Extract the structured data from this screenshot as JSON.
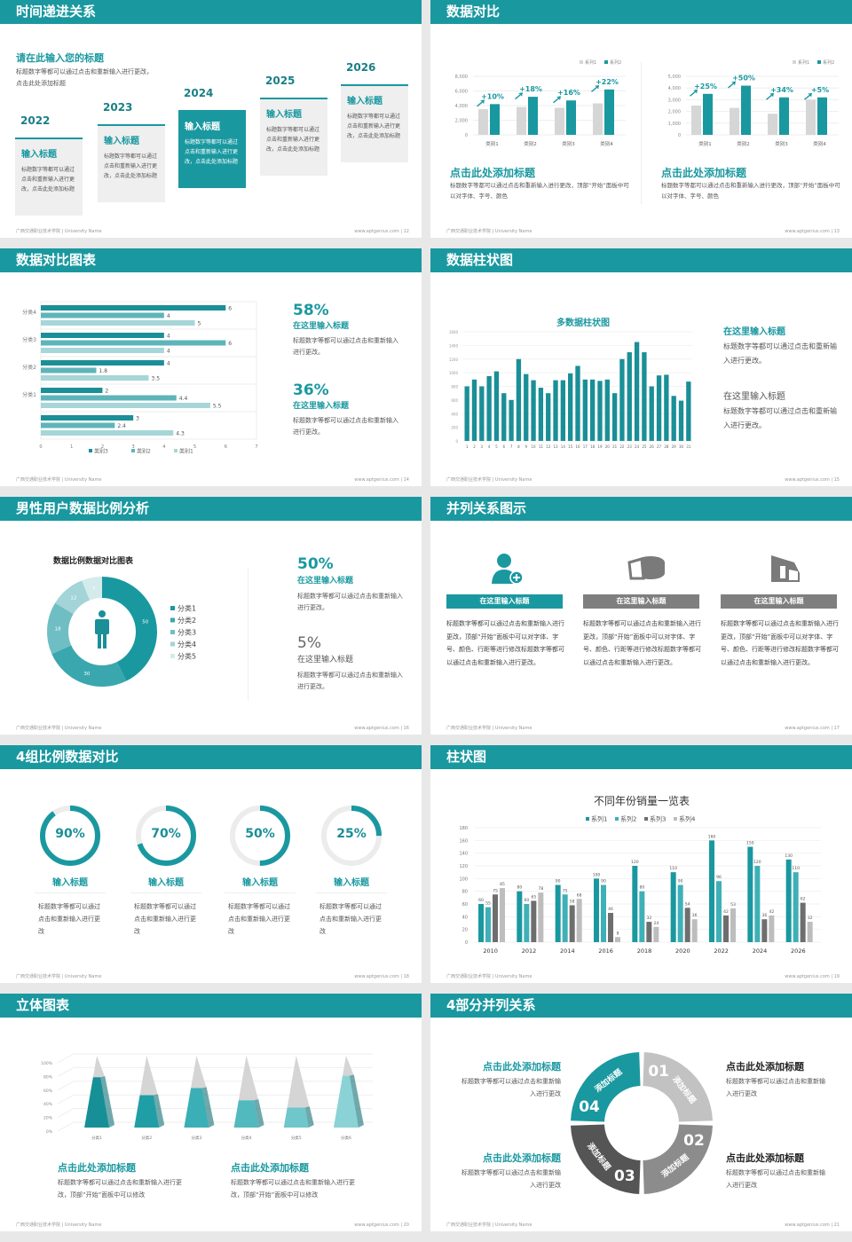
{
  "footer": {
    "left": "广西交通职业技术学院 | University Name",
    "url": "www.aptgenius.com"
  },
  "colors": {
    "accent": "#1a98a0",
    "gray": "#d3d3d3"
  },
  "s1": {
    "title": "时间递进关系",
    "page": "12",
    "subtitle": "请在此输入您的标题",
    "desc": "标题数字等都可以通过点击和重新输入进行更改，点击此处添加标题",
    "items": [
      {
        "year": "2022",
        "title": "输入标题",
        "text": "标题数字等都可以通过点击和重新输入进行更改，点击此处添加标题"
      },
      {
        "year": "2023",
        "title": "输入标题",
        "text": "标题数字等都可以通过点击和重新输入进行更改，点击此处添加标题"
      },
      {
        "year": "2024",
        "title": "输入标题",
        "text": "标题数字等都可以通过点击和重新输入进行更改，点击此处添加标题"
      },
      {
        "year": "2025",
        "title": "输入标题",
        "text": "标题数字等都可以通过点击和重新输入进行更改，点击此处添加标题"
      },
      {
        "year": "2026",
        "title": "输入标题",
        "text": "标题数字等都可以通过点击和重新输入进行更改，点击此处添加标题"
      }
    ]
  },
  "s2": {
    "title": "数据对比",
    "page": "13",
    "blocks": [
      {
        "title": "点击此处添加标题",
        "text": "标题数字等都可以通过点击和重新输入进行更改，顶部“开始”面板中可以对字体、字号、颜色"
      },
      {
        "title": "点击此处添加标题",
        "text": "标题数字等都可以通过点击和重新输入进行更改，顶部“开始”面板中可以对字体、字号、颜色"
      }
    ]
  },
  "s3": {
    "title": "数据对比图表",
    "page": "14",
    "stats": [
      {
        "value": "58%",
        "title": "在这里输入标题",
        "text": "标题数字等都可以通过点击和重新输入进行更改。"
      },
      {
        "value": "36%",
        "title": "在这里输入标题",
        "text": "标题数字等都可以通过点击和重新输入进行更改。"
      }
    ]
  },
  "s4": {
    "title": "数据柱状图",
    "page": "15",
    "blocks": [
      {
        "title": "在这里输入标题",
        "text": "标题数字等都可以通过点击和重新输入进行更改。"
      },
      {
        "title": "在这里输入标题",
        "text": "标题数字等都可以通过点击和重新输入进行更改。"
      }
    ]
  },
  "s5": {
    "title": "男性用户数据比例分析",
    "page": "16",
    "stats": [
      {
        "value": "50%",
        "title": "在这里输入标题",
        "text": "标题数字等都可以通过点击和重新输入进行更改。"
      },
      {
        "value": "5%",
        "title": "在这里输入标题",
        "text": "标题数字等都可以通过点击和重新输入进行更改。"
      }
    ]
  },
  "s6": {
    "title": "并列关系图示",
    "page": "17",
    "items": [
      {
        "icon": "female-user-add-icon",
        "label": "在这里输入标题",
        "text": "标题数字等都可以通过点击和重新输入进行更改，顶部“开始”面板中可以对字体、字号、颜色、行距等进行修改标题数字等都可以通过点击和重新输入进行更改。"
      },
      {
        "icon": "pie-cheese-icon",
        "label": "在这里输入标题",
        "text": "标题数字等都可以通过点击和重新输入进行更改，顶部“开始”面板中可以对字体、字号、颜色、行距等进行修改标题数字等都可以通过点击和重新输入进行更改。"
      },
      {
        "icon": "building-icon",
        "label": "在这里输入标题",
        "text": "标题数字等都可以通过点击和重新输入进行更改，顶部“开始”面板中可以对字体、字号、颜色、行距等进行修改标题数字等都可以通过点击和重新输入进行更改。"
      }
    ]
  },
  "s7": {
    "title": "4组比例数据对比",
    "page": "18",
    "items": [
      {
        "value": "90%",
        "fraction": 0.9,
        "title": "输入标题",
        "text": "标题数字等都可以通过点击和重新输入进行更改"
      },
      {
        "value": "70%",
        "fraction": 0.7,
        "title": "输入标题",
        "text": "标题数字等都可以通过点击和重新输入进行更改"
      },
      {
        "value": "50%",
        "fraction": 0.5,
        "title": "输入标题",
        "text": "标题数字等都可以通过点击和重新输入进行更改"
      },
      {
        "value": "25%",
        "fraction": 0.25,
        "title": "输入标题",
        "text": "标题数字等都可以通过点击和重新输入进行更改"
      }
    ]
  },
  "s8": {
    "title": "柱状图",
    "page": "19"
  },
  "s9": {
    "title": "立体图表",
    "page": "20",
    "blocks": [
      {
        "title": "点击此处添加标题",
        "text": "标题数字等都可以通过点击和重新输入进行更改，顶部“开始”面板中可以修改"
      },
      {
        "title": "点击此处添加标题",
        "text": "标题数字等都可以通过点击和重新输入进行更改，顶部“开始”面板中可以修改"
      }
    ]
  },
  "s10": {
    "title": "4部分并列关系",
    "page": "21",
    "segments": [
      {
        "num": "01",
        "label": "添加标题",
        "color": "#c2c2c2"
      },
      {
        "num": "02",
        "label": "添加标题",
        "color": "#8c8c8c"
      },
      {
        "num": "03",
        "label": "添加标题",
        "color": "#555555"
      },
      {
        "num": "04",
        "label": "添加标题",
        "color": "#1a98a0"
      }
    ],
    "blocks": [
      {
        "title": "点击此处添加标题",
        "text": "标题数字等都可以通过点击和重新输入进行更改"
      },
      {
        "title": "点击此处添加标题",
        "text": "标题数字等都可以通过点击和重新输入进行更改"
      },
      {
        "title": "点击此处添加标题",
        "text": "标题数字等都可以通过点击和重新输入进行更改"
      },
      {
        "title": "点击此处添加标题",
        "text": "标题数字等都可以通过点击和重新输入进行更改"
      }
    ]
  },
  "chart_data": [
    {
      "type": "bar",
      "categories": [
        "类别1",
        "类别2",
        "类别3",
        "类别4"
      ],
      "series": [
        {
          "name": "系列1",
          "values": [
            3500,
            3800,
            3700,
            4300
          ]
        },
        {
          "name": "系列2",
          "values": [
            4200,
            5200,
            4700,
            6200
          ]
        }
      ],
      "annotations": [
        "+10%",
        "+18%",
        "+16%",
        "+22%"
      ],
      "ylim": [
        0,
        8000
      ],
      "yticks": [
        "0",
        "2,000",
        "4,000",
        "6,000",
        "8,000"
      ],
      "legend": "top-right"
    },
    {
      "type": "bar",
      "categories": [
        "类别1",
        "类别2",
        "类别3",
        "类别4"
      ],
      "series": [
        {
          "name": "系列1",
          "values": [
            2500,
            2300,
            1800,
            3000
          ]
        },
        {
          "name": "系列2",
          "values": [
            3500,
            4200,
            3200,
            3200
          ]
        }
      ],
      "annotations": [
        "+25%",
        "+50%",
        "+34%",
        "+5%"
      ],
      "ylim": [
        0,
        5000
      ],
      "yticks": [
        "0",
        "1,000",
        "2,000",
        "3,000",
        "4,000",
        "5,000"
      ],
      "legend": "top-right"
    },
    {
      "type": "bar",
      "orientation": "horizontal",
      "categories": [
        "分类4",
        "分类3",
        "分类2",
        "分类1",
        ""
      ],
      "series": [
        {
          "name": "类别3",
          "values": [
            6,
            4,
            4,
            2,
            3
          ]
        },
        {
          "name": "类别2",
          "values": [
            4,
            6,
            1.8,
            4.4,
            2.4
          ]
        },
        {
          "name": "类别1",
          "values": [
            5,
            4,
            3.5,
            5.5,
            4.3
          ]
        }
      ],
      "xlim": [
        0,
        7
      ],
      "xticks": [
        "0",
        "1",
        "2",
        "3",
        "4",
        "5",
        "6",
        "7"
      ],
      "legend": "bottom"
    },
    {
      "type": "bar",
      "title": "多数据柱状图",
      "categories": [
        "1",
        "2",
        "3",
        "4",
        "5",
        "6",
        "7",
        "8",
        "9",
        "10",
        "11",
        "12",
        "13",
        "14",
        "15",
        "16",
        "17",
        "18",
        "19",
        "20",
        "21",
        "22",
        "23",
        "24",
        "25",
        "26",
        "27",
        "28",
        "29",
        "30",
        "31"
      ],
      "values": [
        800,
        900,
        800,
        950,
        1020,
        700,
        600,
        1200,
        980,
        890,
        780,
        700,
        890,
        890,
        990,
        1100,
        900,
        900,
        880,
        900,
        700,
        1200,
        1300,
        1450,
        1300,
        800,
        960,
        970,
        660,
        590,
        870
      ],
      "ylim": [
        0,
        1600
      ],
      "yticks": [
        "0",
        "200",
        "400",
        "600",
        "800",
        "1000",
        "1200",
        "1400",
        "1600"
      ]
    },
    {
      "type": "pie",
      "title": "数据比例数据对比图表",
      "donut": true,
      "categories": [
        "分类1",
        "分类2",
        "分类3",
        "分类4",
        "分类5"
      ],
      "values": [
        50,
        30,
        18,
        12,
        7
      ],
      "colors": [
        "#1a98a0",
        "#3aa7ae",
        "#6fbec3",
        "#a3d4d7",
        "#d4ebec"
      ],
      "legend": "right"
    },
    {
      "type": "bar",
      "title": "不同年份销量一览表",
      "categories": [
        "2010",
        "2012",
        "2014",
        "2016",
        "2018",
        "2020",
        "2022",
        "2024",
        "2026"
      ],
      "series": [
        {
          "name": "系列1",
          "values": [
            60,
            80,
            90,
            100,
            120,
            110,
            160,
            150,
            130
          ]
        },
        {
          "name": "系列2",
          "values": [
            55,
            60,
            75,
            90,
            80,
            90,
            96,
            120,
            110
          ]
        },
        {
          "name": "系列3",
          "values": [
            75,
            65,
            58,
            46,
            32,
            54,
            42,
            36,
            62
          ]
        },
        {
          "name": "系列4",
          "values": [
            85,
            78,
            68,
            8,
            24,
            36,
            53,
            42,
            32
          ]
        }
      ],
      "colors": [
        "#1a98a0",
        "#3fb0b7",
        "#6e6e6e",
        "#bdbdbd"
      ],
      "ylim": [
        0,
        180
      ],
      "yticks": [
        "0",
        "20",
        "40",
        "60",
        "80",
        "100",
        "120",
        "140",
        "160",
        "180"
      ],
      "legend": "top"
    },
    {
      "type": "bar",
      "style": "3d-pyramid",
      "categories": [
        "分类1",
        "分类2",
        "分类3",
        "分类4",
        "分类5",
        "分类6"
      ],
      "values": [
        70,
        45,
        55,
        38,
        28,
        72
      ],
      "ylim": [
        0,
        100
      ],
      "yticks": [
        "0%",
        "20%",
        "40%",
        "60%",
        "80%",
        "100%"
      ]
    }
  ]
}
